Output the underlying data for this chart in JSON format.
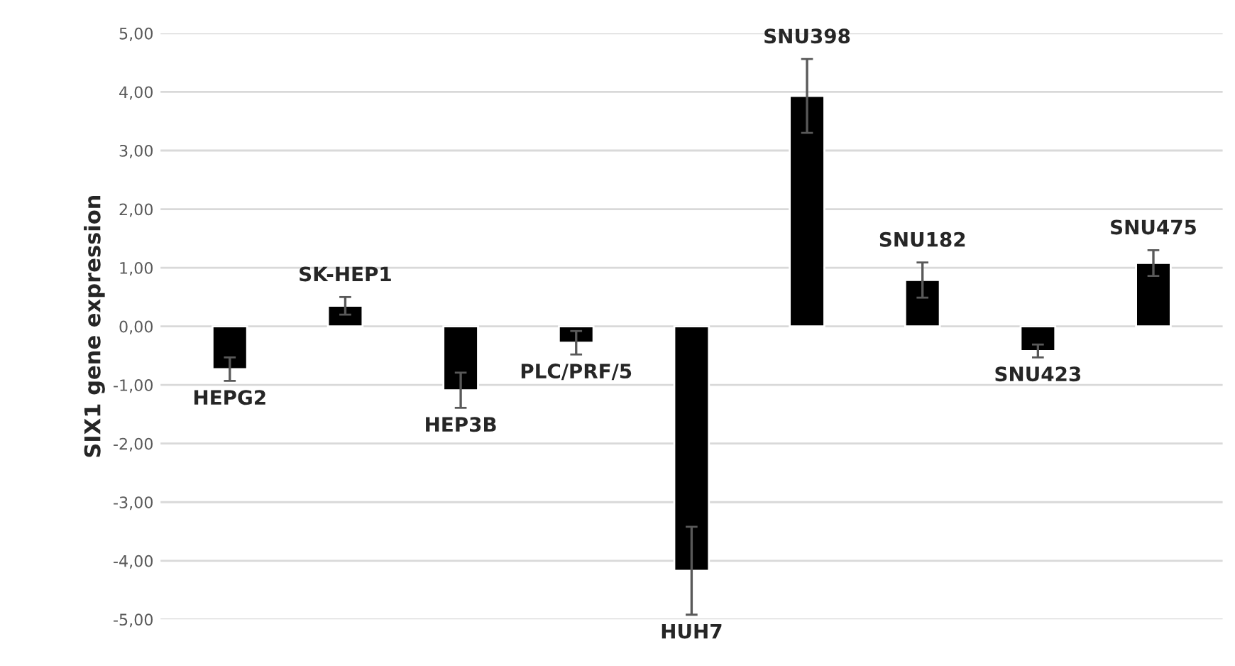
{
  "chart_data": {
    "type": "bar",
    "ylabel": "SIX1 gene expression",
    "categories": [
      "HEPG2",
      "SK-HEP1",
      "HEP3B",
      "PLC/PRF/5",
      "HUH7",
      "SNU398",
      "SNU182",
      "SNU423",
      "SNU475"
    ],
    "values": [
      -0.73,
      0.35,
      -1.09,
      -0.28,
      -4.17,
      3.93,
      0.79,
      -0.42,
      1.08
    ],
    "errors": [
      0.2,
      0.15,
      0.3,
      0.2,
      0.75,
      0.63,
      0.3,
      0.11,
      0.22
    ],
    "color": "#000000",
    "ylim": [
      -5,
      5
    ],
    "yticks": [
      {
        "value": -5,
        "label": "-5,00"
      },
      {
        "value": -4,
        "label": "-4,00"
      },
      {
        "value": -3,
        "label": "-3,00"
      },
      {
        "value": -2,
        "label": "-2,00"
      },
      {
        "value": -1,
        "label": "-1,00"
      },
      {
        "value": 0,
        "label": "0,00"
      },
      {
        "value": 1,
        "label": "1,00"
      },
      {
        "value": 2,
        "label": "2,00"
      },
      {
        "value": 3,
        "label": "3,00"
      },
      {
        "value": 4,
        "label": "4,00"
      },
      {
        "value": 5,
        "label": "5,00"
      }
    ],
    "grid": "y"
  }
}
